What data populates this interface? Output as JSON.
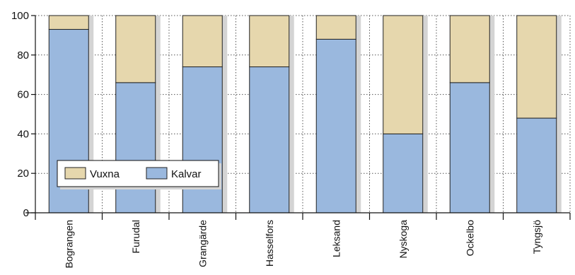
{
  "chart_data": {
    "type": "bar",
    "stacked": true,
    "percent": true,
    "categories": [
      "Bograngen",
      "Furudal",
      "Grangärde",
      "Hasselfors",
      "Leksand",
      "Nyskoga",
      "Ockelbo",
      "Tyngsjö"
    ],
    "series": [
      {
        "name": "Kalvar",
        "values": [
          93,
          66,
          74,
          74,
          88,
          40,
          66,
          48
        ],
        "color": "#9ab8de"
      },
      {
        "name": "Vuxna",
        "values": [
          7,
          34,
          26,
          26,
          12,
          60,
          34,
          52
        ],
        "color": "#e6d7ad"
      }
    ],
    "ylim": [
      0,
      100
    ],
    "yticks": [
      0,
      20,
      40,
      60,
      80,
      100
    ],
    "grid": true,
    "legend": {
      "position": "bottom-left",
      "order": [
        "Vuxna",
        "Kalvar"
      ]
    },
    "title": "",
    "xlabel": "",
    "ylabel": ""
  }
}
